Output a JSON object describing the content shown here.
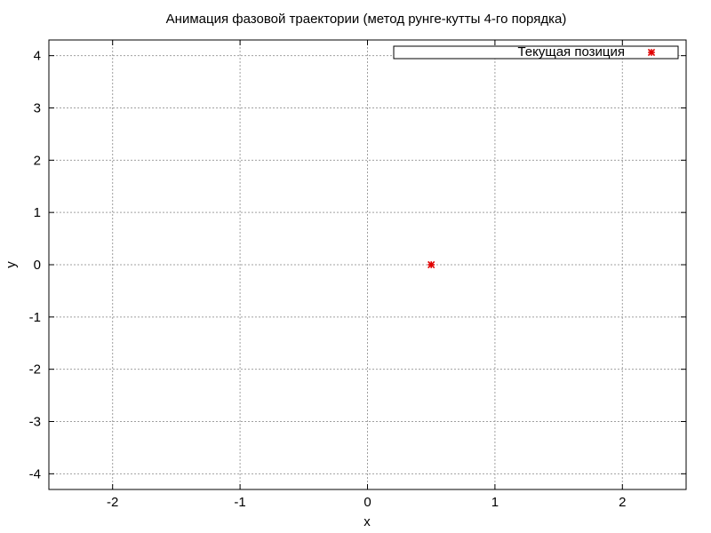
{
  "chart_data": {
    "type": "scatter",
    "title": "Анимация фазовой траектории (метод рунге-кутты 4-го порядка)",
    "xlabel": "x",
    "ylabel": "y",
    "xlim": [
      -2.5,
      2.5
    ],
    "ylim": [
      -4.3,
      4.3
    ],
    "x_ticks": [
      -2,
      -1,
      0,
      1,
      2
    ],
    "y_ticks": [
      4,
      3,
      2,
      1,
      0,
      -1,
      -2,
      -3,
      -4
    ],
    "x_tick_labels": [
      "-2",
      "-1",
      "0",
      "1",
      "2"
    ],
    "y_tick_labels": [
      "4",
      "3",
      "2",
      "1",
      "0",
      "-1",
      "-2",
      "-3",
      "-4"
    ],
    "grid": true,
    "legend_position": "top-right",
    "series": [
      {
        "name": "Текущая позиция",
        "color": "#e00000",
        "marker": "star",
        "points": [
          {
            "x": 0.5,
            "y": 0.0
          }
        ]
      }
    ]
  }
}
